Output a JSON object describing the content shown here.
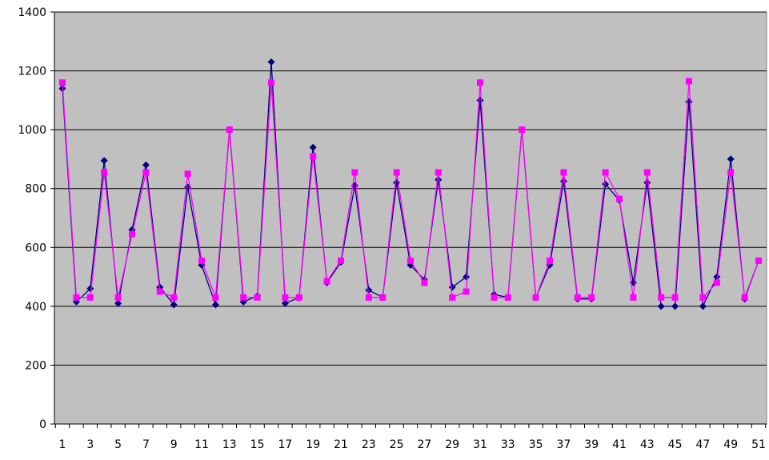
{
  "chart_data": {
    "type": "line",
    "title": "",
    "xlabel": "",
    "ylabel": "",
    "ylim": [
      0,
      1400
    ],
    "yticks": [
      0,
      200,
      400,
      600,
      800,
      1000,
      1200,
      1400
    ],
    "x": [
      1,
      2,
      3,
      4,
      5,
      6,
      7,
      8,
      9,
      10,
      11,
      12,
      13,
      14,
      15,
      16,
      17,
      18,
      19,
      20,
      21,
      22,
      23,
      24,
      25,
      26,
      27,
      28,
      29,
      30,
      31,
      32,
      33,
      34,
      35,
      36,
      37,
      38,
      39,
      40,
      41,
      42,
      43,
      44,
      45,
      46,
      47,
      48,
      49,
      50,
      51
    ],
    "xtick_labels": [
      "1",
      "3",
      "5",
      "7",
      "9",
      "11",
      "13",
      "15",
      "17",
      "19",
      "21",
      "23",
      "25",
      "27",
      "29",
      "31",
      "33",
      "35",
      "37",
      "39",
      "41",
      "43",
      "45",
      "47",
      "49",
      "51"
    ],
    "grid": "horizontal",
    "plot_background": "#c0c0c0",
    "series": [
      {
        "color": "#000080",
        "marker": "diamond",
        "values": [
          1140,
          415,
          460,
          895,
          410,
          660,
          880,
          465,
          405,
          805,
          540,
          405,
          1000,
          415,
          435,
          1230,
          410,
          430,
          940,
          480,
          550,
          810,
          455,
          430,
          820,
          540,
          490,
          830,
          465,
          500,
          1100,
          440,
          430,
          1000,
          430,
          540,
          825,
          425,
          425,
          815,
          760,
          480,
          820,
          400,
          400,
          1095,
          400,
          500,
          900,
          425,
          555
        ]
      },
      {
        "color": "#ff00ff",
        "marker": "square",
        "values": [
          1160,
          430,
          430,
          855,
          430,
          645,
          855,
          450,
          430,
          850,
          555,
          430,
          1000,
          430,
          430,
          1160,
          430,
          430,
          910,
          485,
          555,
          855,
          430,
          430,
          855,
          555,
          480,
          855,
          430,
          450,
          1160,
          430,
          430,
          1000,
          430,
          555,
          855,
          430,
          430,
          855,
          765,
          430,
          855,
          430,
          430,
          1165,
          430,
          480,
          855,
          430,
          555
        ]
      }
    ]
  }
}
